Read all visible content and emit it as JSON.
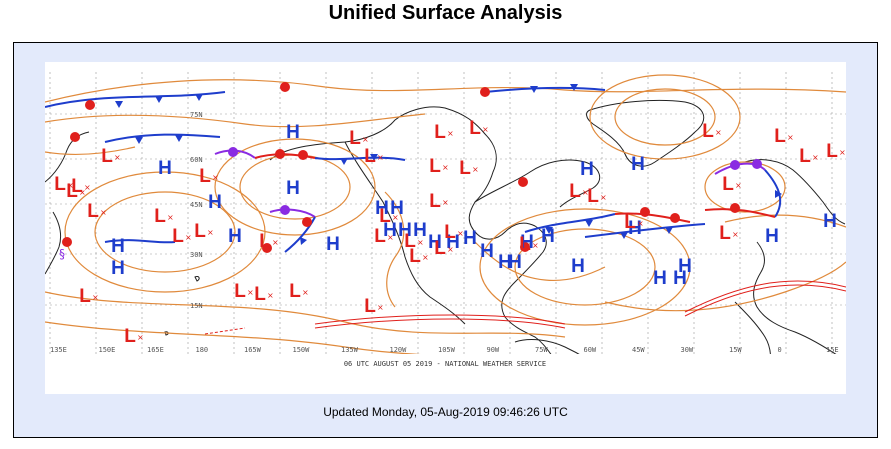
{
  "page": {
    "title": "Unified Surface Analysis",
    "updated": "Updated Monday, 05-Aug-2019 09:46:26 UTC"
  },
  "map": {
    "credit": "06 UTC AUGUST 05 2019 - NATIONAL WEATHER SERVICE",
    "lon_labels": [
      "135E",
      "150E",
      "165E",
      "180",
      "165W",
      "150W",
      "135W",
      "120W",
      "105W",
      "90W",
      "75W",
      "60W",
      "45W",
      "30W",
      "15W",
      "0",
      "15E"
    ],
    "lat_labels": [
      "75N",
      "60N",
      "45N",
      "30N",
      "15N"
    ],
    "high_label": "H",
    "low_label": "L",
    "colors": {
      "high": "#1e3dcc",
      "low": "#e0201c",
      "isobar": "#e08a3c",
      "coast": "#222222",
      "cold_front": "#1e3dcc",
      "warm_front": "#e0201c",
      "occluded_front": "#8a2be2",
      "trough": "#d06020"
    }
  }
}
